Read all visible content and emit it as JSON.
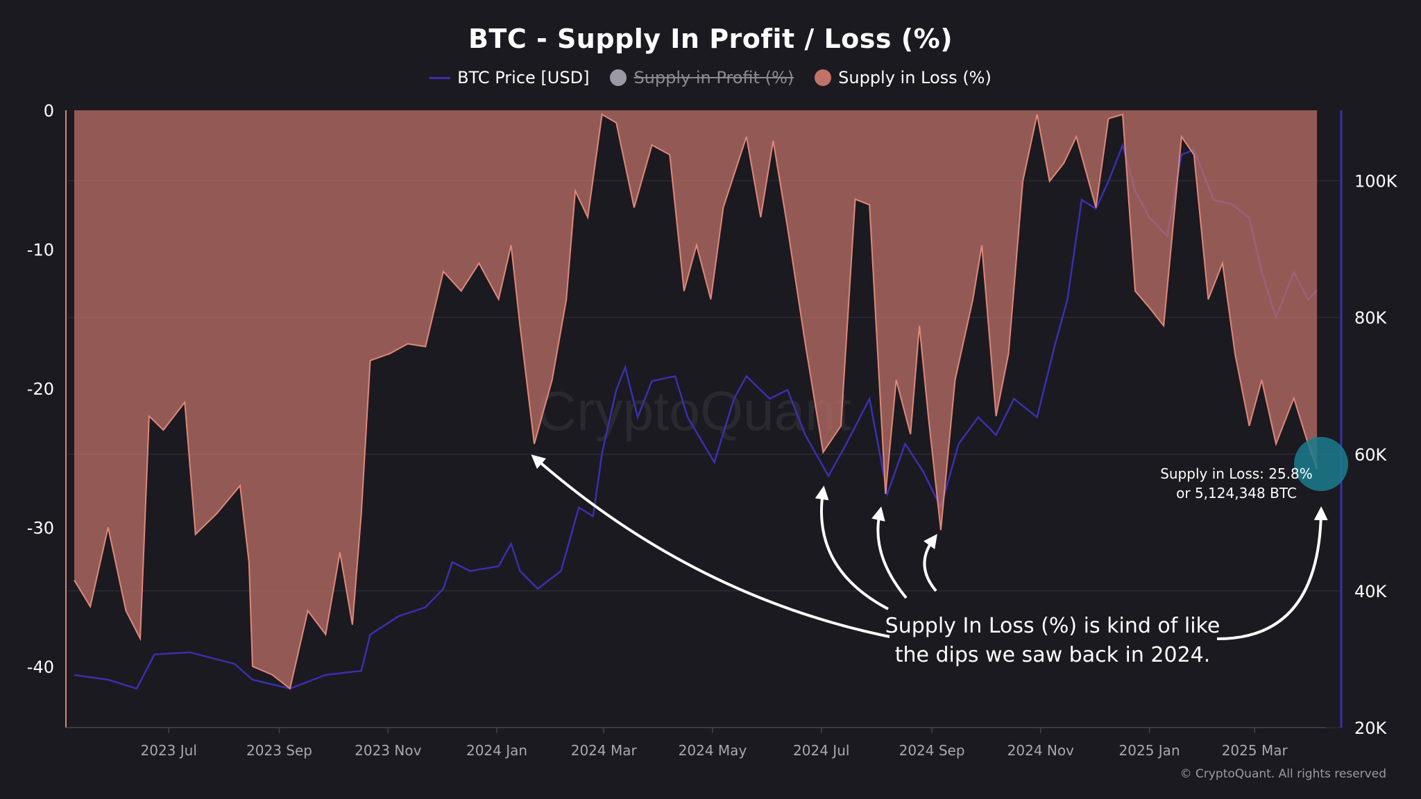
{
  "title": "BTC - Supply In Profit / Loss (%)",
  "legend": [
    {
      "label": "BTC Price [USD]",
      "color": "#3b2fb0",
      "marker": "line",
      "hidden": false
    },
    {
      "label": "Supply in Profit (%)",
      "color": "#9a9aa6",
      "marker": "dot",
      "hidden": true
    },
    {
      "label": "Supply in Loss (%)",
      "color": "#c27369",
      "marker": "dot",
      "hidden": false
    }
  ],
  "watermark": "CryptoQuant",
  "copyright": "© CryptoQuant. All rights reserved",
  "annotation": {
    "callout_lines": [
      "Supply In Loss (%) is kind of like",
      "the dips we saw back in 2024."
    ],
    "latest_lines": [
      "Supply in Loss: 25.8%",
      "or 5,124,348 BTC"
    ],
    "highlight_color": "#1b7d8e"
  },
  "chart_data": {
    "type": "area+line",
    "title": "BTC - Supply In Profit / Loss (%)",
    "xlim": [
      "2023-05-09",
      "2025-04-10"
    ],
    "x_ticks": [
      {
        "date": "2023-07-01",
        "label": "2023 Jul"
      },
      {
        "date": "2023-09-01",
        "label": "2023 Sep"
      },
      {
        "date": "2023-11-01",
        "label": "2023 Nov"
      },
      {
        "date": "2024-01-01",
        "label": "2024 Jan"
      },
      {
        "date": "2024-03-01",
        "label": "2024 Mar"
      },
      {
        "date": "2024-05-01",
        "label": "2024 May"
      },
      {
        "date": "2024-07-01",
        "label": "2024 Jul"
      },
      {
        "date": "2024-09-01",
        "label": "2024 Sep"
      },
      {
        "date": "2024-11-01",
        "label": "2024 Nov"
      },
      {
        "date": "2025-01-01",
        "label": "2025 Jan"
      },
      {
        "date": "2025-03-01",
        "label": "2025 Mar"
      }
    ],
    "y_left": {
      "lim": [
        -44.4,
        0
      ],
      "ticks": [
        0,
        -10,
        -20,
        -30,
        -40
      ],
      "tick_labels": [
        "0",
        "-10",
        "-20",
        "-30",
        "-40"
      ],
      "color": "#d9857a"
    },
    "y_right": {
      "lim": [
        20000,
        110300
      ],
      "ticks": [
        20000,
        40000,
        60000,
        80000,
        100000
      ],
      "tick_labels": [
        "20K",
        "40K",
        "60K",
        "80K",
        "100K"
      ],
      "color": "#3b2fb0"
    },
    "grid": "horizontal",
    "legend_position": "top",
    "series": [
      {
        "name": "Supply in Loss (%)",
        "axis": "left",
        "style": "area",
        "color": "#e0877b",
        "fill": "#c27369",
        "x": [
          "2023-05-09",
          "2023-05-18",
          "2023-05-28",
          "2023-06-07",
          "2023-06-15",
          "2023-06-20",
          "2023-06-28",
          "2023-07-10",
          "2023-07-16",
          "2023-07-28",
          "2023-08-10",
          "2023-08-15",
          "2023-08-17",
          "2023-08-28",
          "2023-09-07",
          "2023-09-17",
          "2023-09-27",
          "2023-10-05",
          "2023-10-12",
          "2023-10-17",
          "2023-10-22",
          "2023-11-02",
          "2023-11-12",
          "2023-11-22",
          "2023-12-02",
          "2023-12-12",
          "2023-12-22",
          "2024-01-02",
          "2024-01-09",
          "2024-01-14",
          "2024-01-22",
          "2024-02-01",
          "2024-02-09",
          "2024-02-14",
          "2024-02-21",
          "2024-02-29",
          "2024-03-08",
          "2024-03-18",
          "2024-03-28",
          "2024-04-07",
          "2024-04-15",
          "2024-04-22",
          "2024-04-30",
          "2024-05-07",
          "2024-05-20",
          "2024-05-28",
          "2024-06-04",
          "2024-06-12",
          "2024-06-22",
          "2024-07-02",
          "2024-07-12",
          "2024-07-20",
          "2024-07-28",
          "2024-08-06",
          "2024-08-12",
          "2024-08-20",
          "2024-08-25",
          "2024-08-30",
          "2024-09-06",
          "2024-09-14",
          "2024-09-24",
          "2024-09-29",
          "2024-10-07",
          "2024-10-14",
          "2024-10-22",
          "2024-10-30",
          "2024-11-06",
          "2024-11-14",
          "2024-11-21",
          "2024-12-02",
          "2024-12-09",
          "2024-12-17",
          "2024-12-24",
          "2025-01-01",
          "2025-01-09",
          "2025-01-19",
          "2025-01-26",
          "2025-02-03",
          "2025-02-11",
          "2025-02-18",
          "2025-02-26",
          "2025-03-05",
          "2025-03-13",
          "2025-03-23",
          "2025-03-31",
          "2025-04-05"
        ],
        "y": [
          -33.8,
          -35.7,
          -30,
          -36,
          -38,
          -22,
          -23,
          -21,
          -30.5,
          -29,
          -27,
          -32.5,
          -40,
          -40.6,
          -41.6,
          -36,
          -37.7,
          -31.8,
          -37,
          -29,
          -18,
          -17.5,
          -16.8,
          -17,
          -11.6,
          -13,
          -11,
          -13.6,
          -9.7,
          -15.5,
          -24,
          -19.4,
          -13.6,
          -5.8,
          -7.7,
          -0.3,
          -0.9,
          -7,
          -2.5,
          -3.2,
          -13,
          -9.7,
          -13.6,
          -7,
          -1.9,
          -7.7,
          -2.2,
          -8.4,
          -16.8,
          -24.6,
          -22.7,
          -6.4,
          -6.8,
          -27.6,
          -19.4,
          -23.3,
          -15.5,
          -22,
          -30.2,
          -19.4,
          -13.6,
          -9.7,
          -22,
          -17.5,
          -5.1,
          -0.3,
          -5.1,
          -3.8,
          -1.9,
          -7,
          -0.6,
          -0.3,
          -13,
          -14.2,
          -15.5,
          -1.9,
          -3.2,
          -13.6,
          -11,
          -17.5,
          -22.7,
          -19.4,
          -24,
          -20.7,
          -24,
          -25.8
        ]
      },
      {
        "name": "BTC Price [USD]",
        "axis": "right",
        "style": "line",
        "color": "#3b2fb0",
        "x": [
          "2023-05-09",
          "2023-05-28",
          "2023-06-13",
          "2023-06-23",
          "2023-07-13",
          "2023-08-07",
          "2023-08-17",
          "2023-09-07",
          "2023-09-27",
          "2023-10-17",
          "2023-10-22",
          "2023-11-07",
          "2023-11-22",
          "2023-12-02",
          "2023-12-07",
          "2023-12-17",
          "2024-01-02",
          "2024-01-09",
          "2024-01-14",
          "2024-01-24",
          "2024-02-06",
          "2024-02-16",
          "2024-02-24",
          "2024-02-29",
          "2024-03-08",
          "2024-03-13",
          "2024-03-20",
          "2024-03-28",
          "2024-04-10",
          "2024-04-17",
          "2024-05-02",
          "2024-05-13",
          "2024-05-20",
          "2024-06-02",
          "2024-06-12",
          "2024-06-22",
          "2024-07-05",
          "2024-07-15",
          "2024-07-28",
          "2024-08-07",
          "2024-08-17",
          "2024-08-27",
          "2024-09-06",
          "2024-09-16",
          "2024-09-27",
          "2024-10-07",
          "2024-10-17",
          "2024-10-30",
          "2024-11-09",
          "2024-11-16",
          "2024-11-24",
          "2024-12-02",
          "2024-12-09",
          "2024-12-17",
          "2024-12-24",
          "2025-01-01",
          "2025-01-11",
          "2025-01-19",
          "2025-01-26",
          "2025-02-06",
          "2025-02-16",
          "2025-02-26",
          "2025-03-05",
          "2025-03-13",
          "2025-03-23",
          "2025-03-31",
          "2025-04-05"
        ],
        "y": [
          27700,
          27000,
          25700,
          30700,
          31000,
          29300,
          27000,
          25700,
          27700,
          28300,
          33600,
          36300,
          37600,
          40300,
          44200,
          42900,
          43600,
          46900,
          42900,
          40300,
          42900,
          52200,
          50900,
          60100,
          69400,
          72700,
          65400,
          70700,
          71400,
          65400,
          58800,
          68100,
          71400,
          68100,
          69400,
          62800,
          56800,
          61500,
          68100,
          54200,
          61500,
          57500,
          52200,
          61500,
          65400,
          62800,
          68100,
          65400,
          76000,
          82600,
          97200,
          95900,
          99900,
          105200,
          98500,
          94600,
          91900,
          103800,
          104500,
          97200,
          96600,
          94600,
          86600,
          80000,
          86600,
          82600,
          84000
        ]
      },
      {
        "name": "Supply in Profit (%)",
        "hidden": true
      }
    ]
  }
}
